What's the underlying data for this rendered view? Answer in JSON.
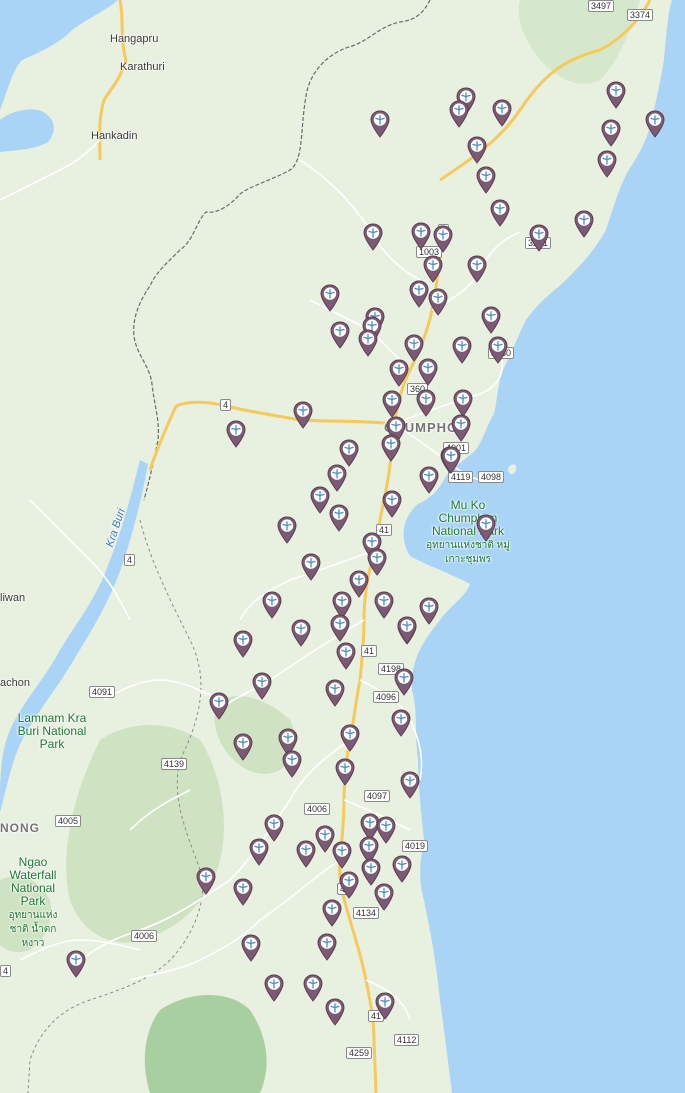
{
  "colors": {
    "sea": "#a9d4f5",
    "land": "#e8f0e0",
    "forest": "#cfe3c2",
    "forest_dark": "#a8cfa0",
    "road_major": "#f7c95a",
    "road_minor": "#ffffff",
    "border": "#6b6b6b",
    "river": "#7fb2e6",
    "pin_fill": "#7d5a74",
    "pin_inner": "#ffffff",
    "pin_icon": "#4a8fc9"
  },
  "places": {
    "hangapru": "Hangapru",
    "karathuri": "Karathuri",
    "hankadin": "Hankadin",
    "chumphon": "CHUMPHON",
    "kra_buri_river": "Kra Buri",
    "liwan": "liwan",
    "achon": "achon",
    "nong": "NONG",
    "mu_ko_chumphon": "Mu Ko Chumphon National Park",
    "mu_ko_chumphon_thai": "อุทยานแห่งชาติ หมู่เกาะชุมพร",
    "lamnam_kra_buri": "Lamnam Kra Buri National Park",
    "ngao_waterfall": "Ngao Waterfall National Park",
    "ngao_waterfall_thai": "อุทยานแห่งชาติ น้ำตกหงาว"
  },
  "road_shields": [
    "3497",
    "3374",
    "1",
    "1003",
    "3201",
    "3180",
    "360",
    "4",
    "4",
    "41",
    "4001",
    "4119",
    "4098",
    "41",
    "4198",
    "4096",
    "4091",
    "4139",
    "4097",
    "4006",
    "4005",
    "4019",
    "41",
    "4134",
    "4006",
    "41",
    "4112",
    "4259",
    "4"
  ],
  "markers": {
    "count": 96,
    "icon": "wind-turbine-icon"
  }
}
